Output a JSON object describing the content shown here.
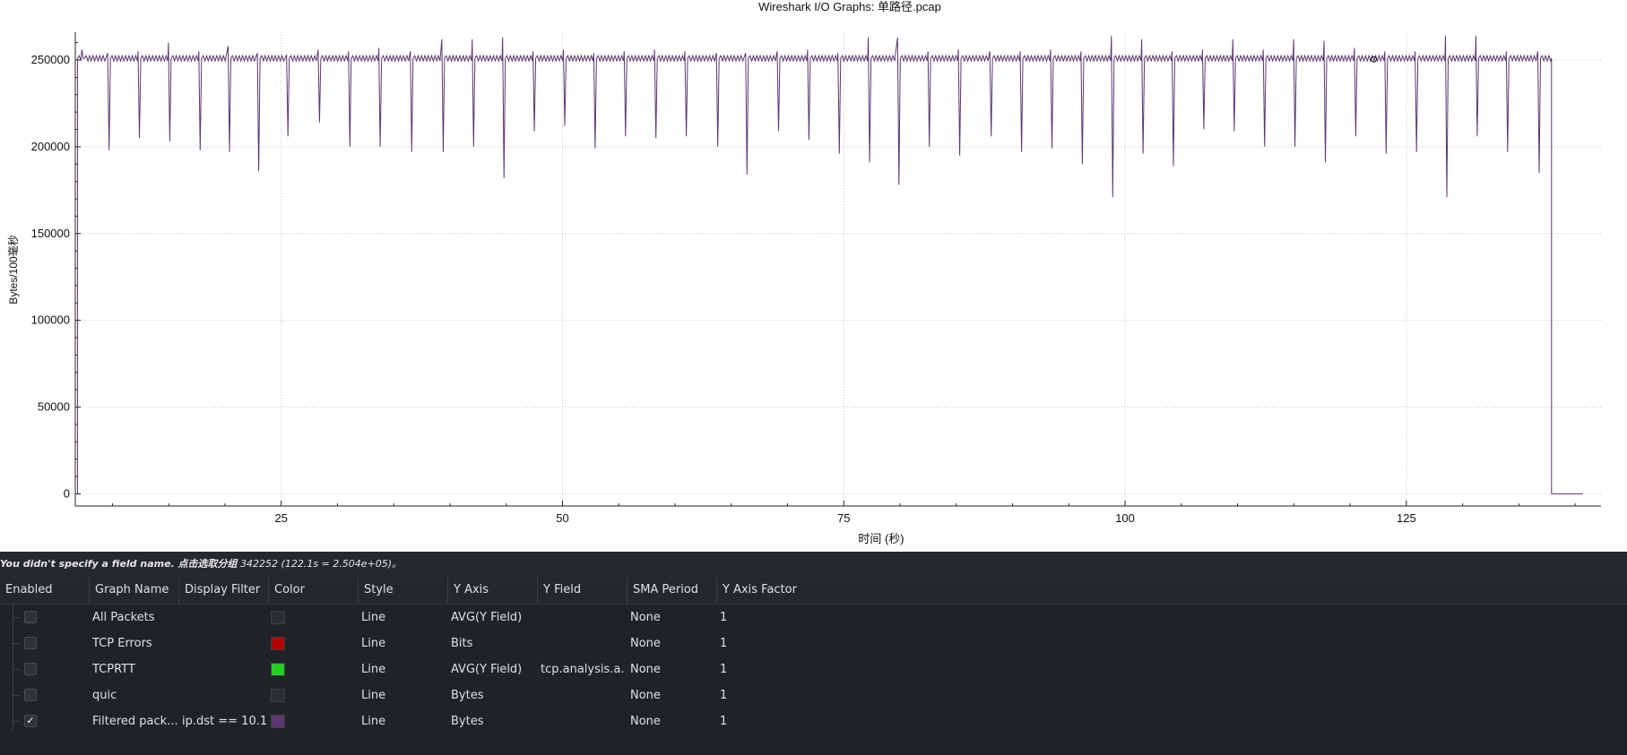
{
  "window": {
    "title": "Wireshark I/O Graphs: 单路径.pcap"
  },
  "status": {
    "message_bold": "You didn't specify a field name. 点击选取分组",
    "message_value": "342252 (122.1s = 2.504e+05)。"
  },
  "table": {
    "headers": [
      "Enabled",
      "Graph Name",
      "Display Filter",
      "Color",
      "Style",
      "Y Axis",
      "Y Field",
      "SMA Period",
      "Y Axis Factor"
    ],
    "rows": [
      {
        "enabled": false,
        "name": "All Packets",
        "filter": "",
        "color": "#2b2e33",
        "style": "Line",
        "y_axis": "AVG(Y Field)",
        "y_field": "",
        "sma": "None",
        "factor": "1"
      },
      {
        "enabled": false,
        "name": "TCP Errors",
        "filter": "",
        "color": "#b20000",
        "style": "Line",
        "y_axis": "Bits",
        "y_field": "",
        "sma": "None",
        "factor": "1"
      },
      {
        "enabled": false,
        "name": "TCPRTT",
        "filter": "",
        "color": "#23d01f",
        "style": "Line",
        "y_axis": "AVG(Y Field)",
        "y_field": "tcp.analysis.a...",
        "sma": "None",
        "factor": "1"
      },
      {
        "enabled": false,
        "name": "quic",
        "filter": "",
        "color": "#2b2e33",
        "style": "Line",
        "y_axis": "Bytes",
        "y_field": "",
        "sma": "None",
        "factor": "1"
      },
      {
        "enabled": true,
        "name": "Filtered pack...",
        "filter": "ip.dst == 10.1...",
        "color": "#5b3670",
        "style": "Line",
        "y_axis": "Bytes",
        "y_field": "",
        "sma": "None",
        "factor": "1"
      }
    ]
  },
  "chart_data": {
    "type": "line",
    "title": "Wireshark I/O Graphs: 单路径.pcap",
    "xlabel": "时间 (秒)",
    "ylabel": "Bytes/100毫秒",
    "x_ticks": [
      25,
      50,
      75,
      100,
      125
    ],
    "y_ticks": [
      0,
      50000,
      100000,
      150000,
      200000,
      250000
    ],
    "xlim": [
      6.7,
      142.3
    ],
    "ylim": [
      -7000,
      266000
    ],
    "grid": true,
    "line_color": "#5b3670",
    "series": [
      {
        "baseline": 251000,
        "start_x": 6.9,
        "end_x": 137.9,
        "tail_x": 140.7,
        "tail_y": 0,
        "spikes": [
          {
            "x": 7.4,
            "peak": 256000,
            "low": 251000
          },
          {
            "x": 9.7,
            "peak": 254000,
            "low": 198000
          },
          {
            "x": 12.4,
            "peak": 255000,
            "low": 205000
          },
          {
            "x": 15.1,
            "peak": 260000,
            "low": 203000
          },
          {
            "x": 17.8,
            "peak": 255000,
            "low": 198000
          },
          {
            "x": 20.4,
            "peak": 258000,
            "low": 197000
          },
          {
            "x": 23.0,
            "peak": 254000,
            "low": 186000
          },
          {
            "x": 25.6,
            "peak": 253000,
            "low": 206000
          },
          {
            "x": 28.4,
            "peak": 256000,
            "low": 214000
          },
          {
            "x": 31.1,
            "peak": 255000,
            "low": 200000
          },
          {
            "x": 33.8,
            "peak": 257000,
            "low": 200000
          },
          {
            "x": 36.6,
            "peak": 255000,
            "low": 197000
          },
          {
            "x": 39.4,
            "peak": 262000,
            "low": 197000
          },
          {
            "x": 42.1,
            "peak": 262000,
            "low": 200000
          },
          {
            "x": 44.8,
            "peak": 263000,
            "low": 182000
          },
          {
            "x": 47.5,
            "peak": 255000,
            "low": 209000
          },
          {
            "x": 50.2,
            "peak": 256000,
            "low": 212000
          },
          {
            "x": 52.9,
            "peak": 254000,
            "low": 199000
          },
          {
            "x": 55.6,
            "peak": 255000,
            "low": 206000
          },
          {
            "x": 58.3,
            "peak": 256000,
            "low": 205000
          },
          {
            "x": 61.0,
            "peak": 255000,
            "low": 206000
          },
          {
            "x": 63.8,
            "peak": 254000,
            "low": 200000
          },
          {
            "x": 66.4,
            "peak": 254000,
            "low": 184000
          },
          {
            "x": 69.2,
            "peak": 255000,
            "low": 209000
          },
          {
            "x": 71.9,
            "peak": 256000,
            "low": 204000
          },
          {
            "x": 74.6,
            "peak": 254000,
            "low": 196000
          },
          {
            "x": 77.3,
            "peak": 263000,
            "low": 191000
          },
          {
            "x": 79.9,
            "peak": 263000,
            "low": 178000
          },
          {
            "x": 82.6,
            "peak": 255000,
            "low": 200000
          },
          {
            "x": 85.3,
            "peak": 256000,
            "low": 195000
          },
          {
            "x": 88.1,
            "peak": 255000,
            "low": 206000
          },
          {
            "x": 90.8,
            "peak": 255000,
            "low": 197000
          },
          {
            "x": 93.5,
            "peak": 256000,
            "low": 199000
          },
          {
            "x": 96.2,
            "peak": 255000,
            "low": 190000
          },
          {
            "x": 98.9,
            "peak": 264000,
            "low": 171000
          },
          {
            "x": 101.6,
            "peak": 262000,
            "low": 196000
          },
          {
            "x": 104.3,
            "peak": 255000,
            "low": 189000
          },
          {
            "x": 107.0,
            "peak": 256000,
            "low": 210000
          },
          {
            "x": 109.7,
            "peak": 262000,
            "low": 209000
          },
          {
            "x": 112.4,
            "peak": 256000,
            "low": 200000
          },
          {
            "x": 115.1,
            "peak": 262000,
            "low": 200000
          },
          {
            "x": 117.8,
            "peak": 261000,
            "low": 191000
          },
          {
            "x": 120.5,
            "peak": 257000,
            "low": 206000
          },
          {
            "x": 123.2,
            "peak": 255000,
            "low": 196000
          },
          {
            "x": 125.9,
            "peak": 255000,
            "low": 197000
          },
          {
            "x": 128.6,
            "peak": 264000,
            "low": 171000
          },
          {
            "x": 131.3,
            "peak": 264000,
            "low": 206000
          },
          {
            "x": 134.0,
            "peak": 255000,
            "low": 197000
          },
          {
            "x": 136.8,
            "peak": 255000,
            "low": 185000
          }
        ],
        "marker": {
          "x": 122.1,
          "y": 250400
        }
      }
    ]
  }
}
